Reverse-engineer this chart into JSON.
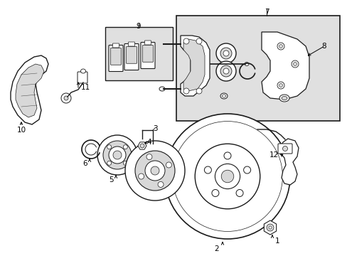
{
  "bg_color": "#ffffff",
  "line_color": "#1a1a1a",
  "shade_color": "#d8d8d8",
  "box_shade": "#e0e0e0",
  "fig_width": 4.89,
  "fig_height": 3.6,
  "dpi": 100,
  "label_fontsize": 7.5
}
